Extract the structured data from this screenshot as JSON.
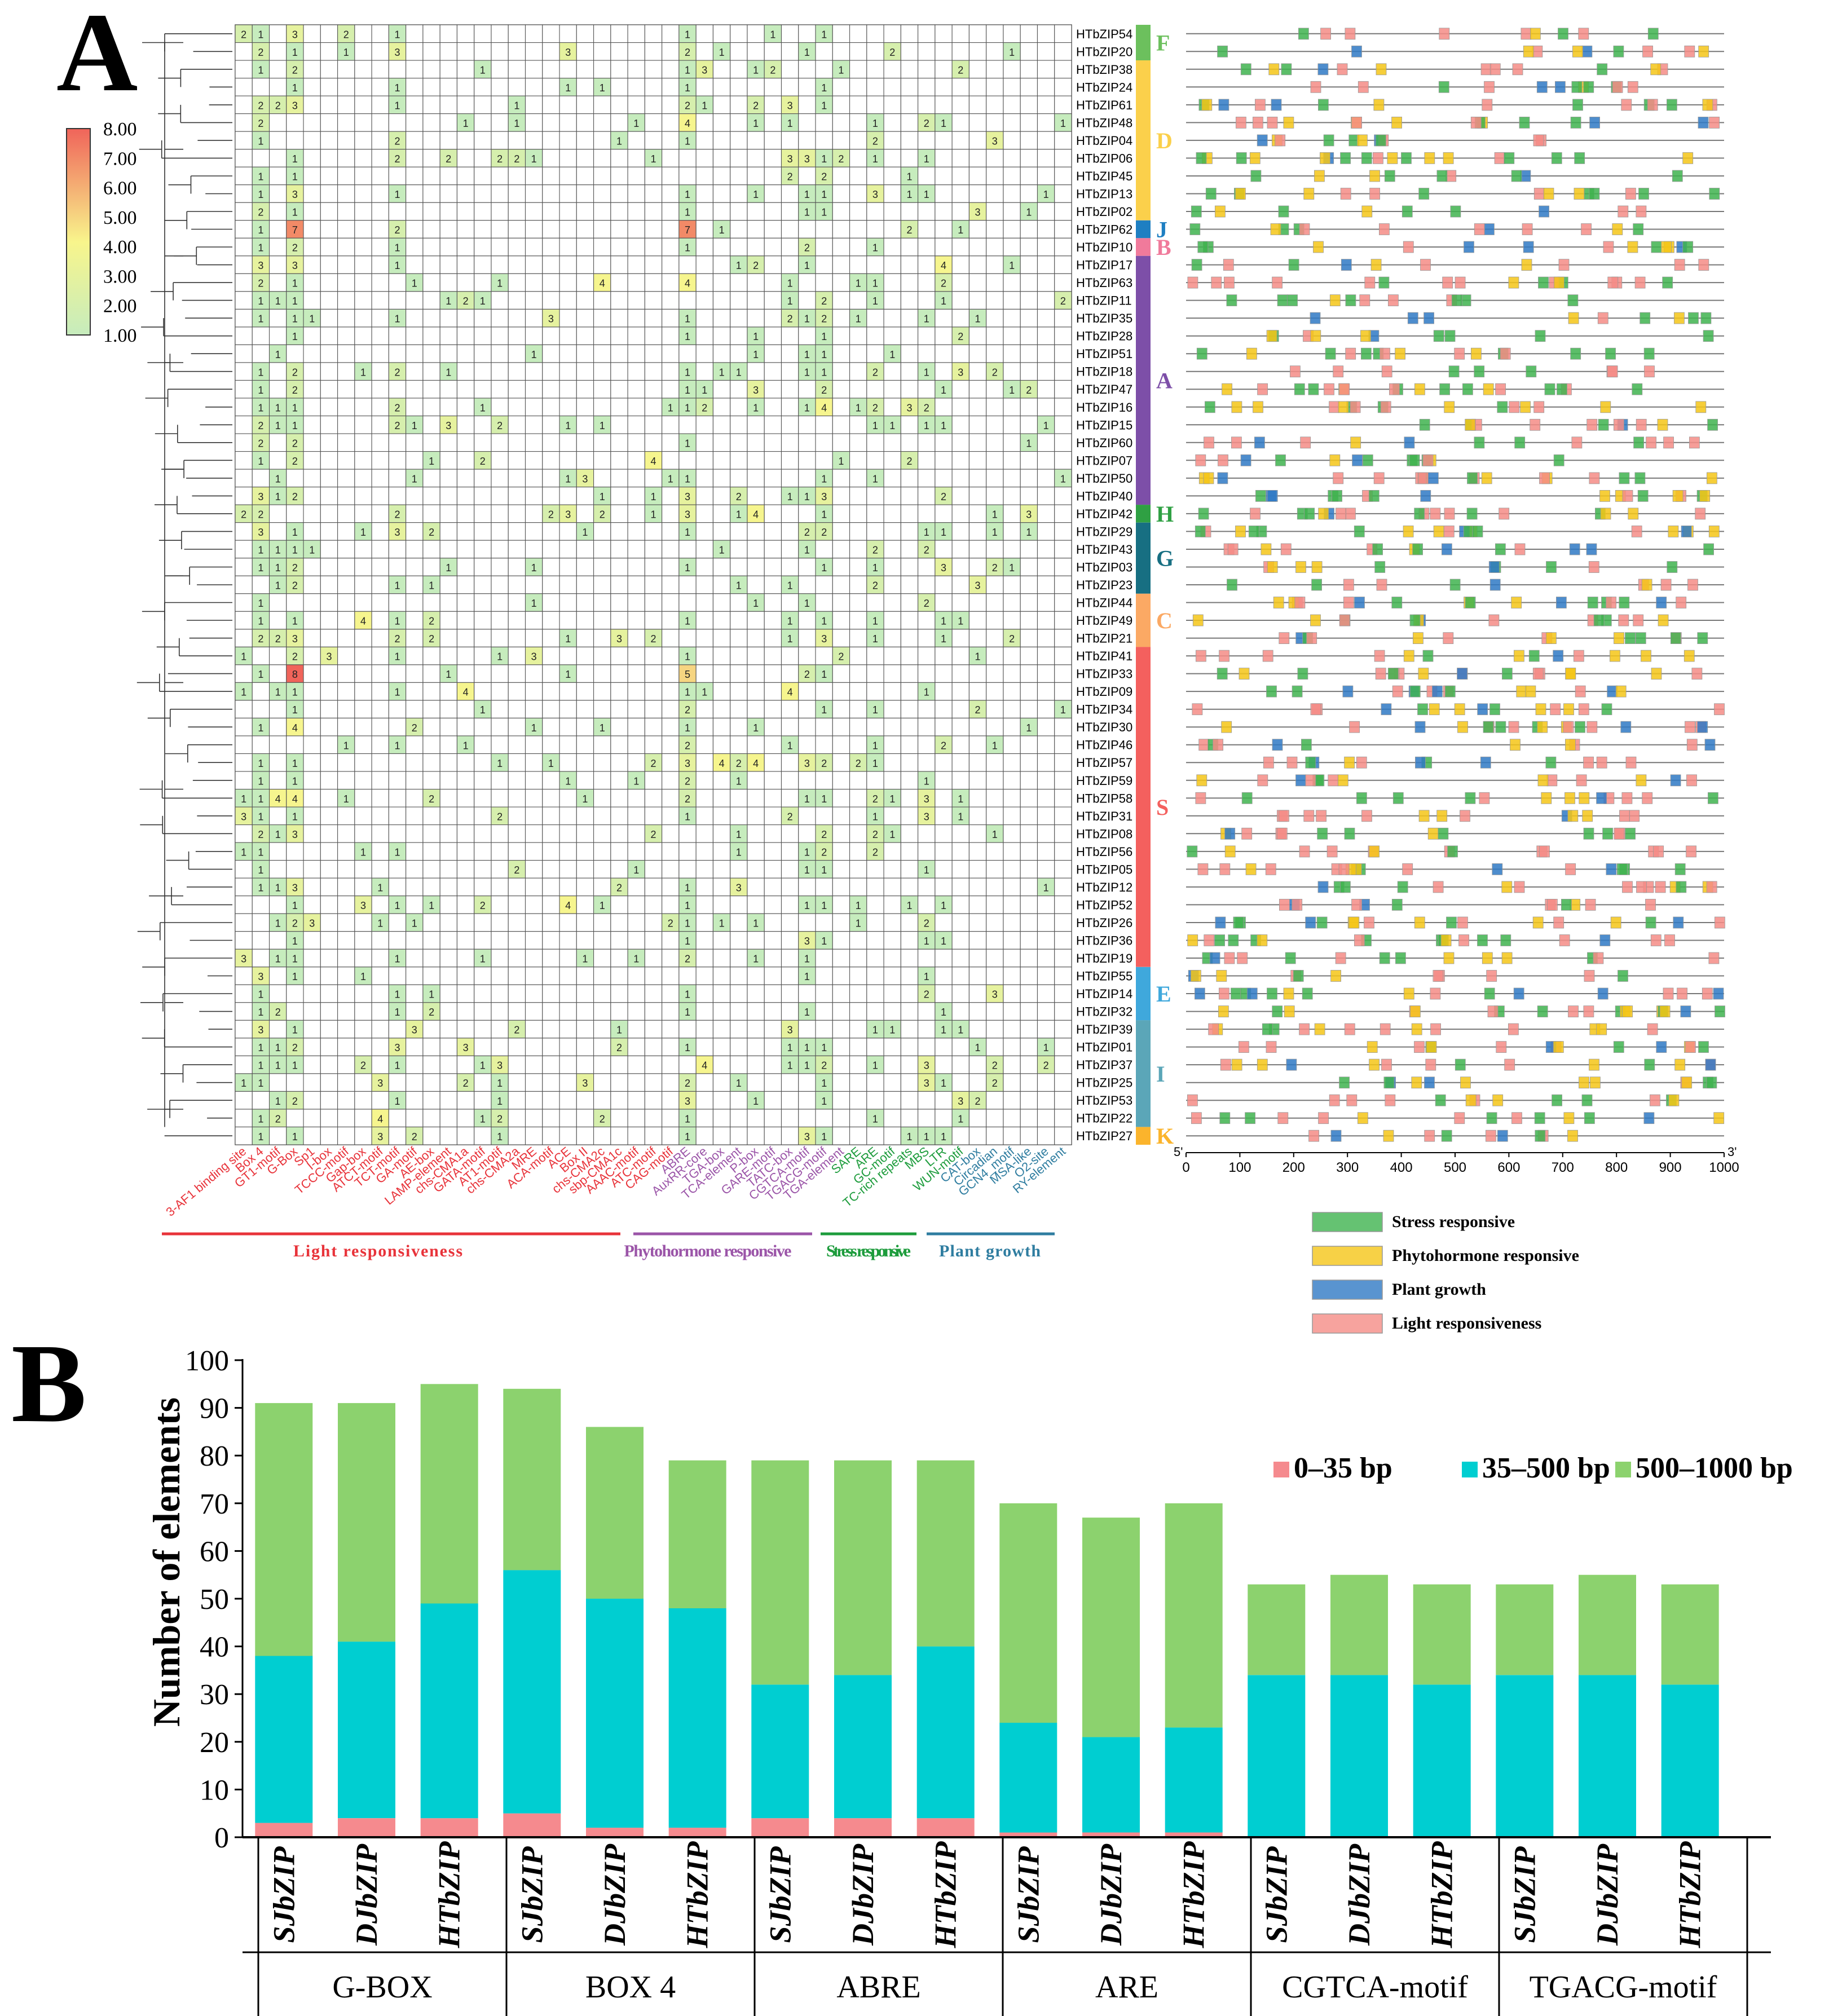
{
  "panel_a": {
    "label": "A",
    "genes": [
      "HTbZIP54",
      "HTbZIP20",
      "HTbZIP38",
      "HTbZIP24",
      "HTbZIP61",
      "HTbZIP48",
      "HTbZIP04",
      "HTbZIP06",
      "HTbZIP45",
      "HTbZIP13",
      "HTbZIP02",
      "HTbZIP62",
      "HTbZIP10",
      "HTbZIP17",
      "HTbZIP63",
      "HTbZIP11",
      "HTbZIP35",
      "HTbZIP28",
      "HTbZIP51",
      "HTbZIP18",
      "HTbZIP47",
      "HTbZIP16",
      "HTbZIP15",
      "HTbZIP60",
      "HTbZIP07",
      "HTbZIP50",
      "HTbZIP40",
      "HTbZIP42",
      "HTbZIP29",
      "HTbZIP43",
      "HTbZIP03",
      "HTbZIP23",
      "HTbZIP44",
      "HTbZIP49",
      "HTbZIP21",
      "HTbZIP41",
      "HTbZIP33",
      "HTbZIP09",
      "HTbZIP34",
      "HTbZIP30",
      "HTbZIP46",
      "HTbZIP57",
      "HTbZIP59",
      "HTbZIP58",
      "HTbZIP31",
      "HTbZIP08",
      "HTbZIP56",
      "HTbZIP05",
      "HTbZIP12",
      "HTbZIP52",
      "HTbZIP26",
      "HTbZIP36",
      "HTbZIP19",
      "HTbZIP55",
      "HTbZIP14",
      "HTbZIP32",
      "HTbZIP39",
      "HTbZIP01",
      "HTbZIP37",
      "HTbZIP25",
      "HTbZIP53",
      "HTbZIP22",
      "HTbZIP27"
    ],
    "elements": [
      "3-AF1 binding site",
      "Box 4",
      "GT1-motif",
      "G-Box",
      "Sp1",
      "I-box",
      "TCCC-motif",
      "Gap-box",
      "ATCT-motif",
      "TCT-motif",
      "GA-motif",
      "AE-box",
      "LAMP-element",
      "chs-CMA1a",
      "GATA-motif",
      "AT1-motif",
      "chs-CMA2a",
      "MRE",
      "ACA-motif",
      "ACE",
      "Box II",
      "chs-CMA2c",
      "sbp-CMA1c",
      "AAAC-motif",
      "ATC-motif",
      "CAG-motif",
      "ABRE",
      "AuxRR-core",
      "TGA-box",
      "TCA-element",
      "P-box",
      "GARE-motif",
      "TATC-box",
      "CGTCA-motif",
      "TGACG-motif",
      "TGA-element",
      "SARE",
      "ARE",
      "GC-motif",
      "TC-rich repeats",
      "MBS",
      "LTR",
      "WUN-motif",
      "CAT-box",
      "Circadian",
      "GCN4_motif",
      "MSA-like",
      "O2-site",
      "RY-element"
    ],
    "element_groups": [
      {
        "name": "Light responsiveness",
        "color": "#e8333a"
      },
      {
        "name": "Phytohormone responsive",
        "color": "#9b55a8"
      },
      {
        "name": "Stress responsive",
        "color": "#1d9c3c"
      },
      {
        "name": "Plant growth",
        "color": "#2f7da0"
      }
    ],
    "colorscale": {
      "labels": [
        "8.00",
        "7.00",
        "6.00",
        "5.00",
        "4.00",
        "3.00",
        "2.00",
        "1.00"
      ],
      "min": 1,
      "max": 8,
      "colors": [
        "#c6ecbd",
        "#f8f58c",
        "#f0645a"
      ]
    },
    "subfamilies": [
      {
        "label": "F",
        "color": "#6cc05d",
        "rows": 2
      },
      {
        "label": "D",
        "color": "#fbd04b",
        "rows": 9
      },
      {
        "label": "J",
        "color": "#1e7fc2",
        "rows": 1
      },
      {
        "label": "B",
        "color": "#f07a9b",
        "rows": 1
      },
      {
        "label": "A",
        "color": "#7d4fa8",
        "rows": 14
      },
      {
        "label": "H",
        "color": "#2fa043",
        "rows": 1
      },
      {
        "label": "G",
        "color": "#176f82",
        "rows": 4
      },
      {
        "label": "C",
        "color": "#fba964",
        "rows": 3
      },
      {
        "label": "S",
        "color": "#f4605e",
        "rows": 18
      },
      {
        "label": "E",
        "color": "#3fa8dc",
        "rows": 3
      },
      {
        "label": "I",
        "color": "#5ba6b8",
        "rows": 6
      },
      {
        "label": "K",
        "color": "#fbb42c",
        "rows": 1
      }
    ],
    "promoter_axis": {
      "left_end": "5'",
      "right_end": "3'",
      "ticks": [
        "0",
        "100",
        "200",
        "300",
        "400",
        "500",
        "600",
        "700",
        "800",
        "900",
        "1000"
      ]
    },
    "legend": [
      {
        "label": "Stress responsive",
        "color": "#3fb34f"
      },
      {
        "label": "Phytohormone responsive",
        "color": "#f5c518"
      },
      {
        "label": "Plant growth",
        "color": "#2f79c4"
      },
      {
        "label": "Light responsiveness",
        "color": "#f58c86"
      }
    ]
  },
  "chart_data": {
    "type": "bar",
    "stacked": true,
    "label": "B",
    "ylabel": "Number of  elements",
    "ylim": [
      0,
      100
    ],
    "yticks": [
      "0",
      "10",
      "20",
      "30",
      "40",
      "50",
      "60",
      "70",
      "80",
      "90",
      "100"
    ],
    "categories": [
      "SJbZIP",
      "DJbZIP",
      "HTbZIP",
      "SJbZIP",
      "DJbZIP",
      "HTbZIP",
      "SJbZIP",
      "DJbZIP",
      "HTbZIP",
      "SJbZIP",
      "DJbZIP",
      "HTbZIP",
      "SJbZIP",
      "DJbZIP",
      "HTbZIP",
      "SJbZIP",
      "DJbZIP",
      "HTbZIP"
    ],
    "groups": [
      "G-BOX",
      "BOX 4",
      "ABRE",
      "ARE",
      "CGTCA-motif",
      "TGACG-motif"
    ],
    "series": [
      {
        "name": "0–35 bp",
        "color": "#f58a8e",
        "values": [
          3,
          4,
          4,
          5,
          2,
          2,
          4,
          4,
          4,
          1,
          1,
          1,
          0,
          0,
          0,
          0,
          0,
          0
        ]
      },
      {
        "name": "35–500 bp",
        "color": "#00ced1",
        "values": [
          35,
          37,
          45,
          51,
          48,
          46,
          28,
          30,
          36,
          23,
          20,
          22,
          34,
          34,
          32,
          34,
          34,
          32
        ]
      },
      {
        "name": "500–1000 bp",
        "color": "#8cd26e",
        "values": [
          53,
          50,
          46,
          38,
          36,
          31,
          47,
          45,
          39,
          46,
          46,
          47,
          19,
          21,
          21,
          19,
          21,
          21
        ]
      }
    ]
  }
}
